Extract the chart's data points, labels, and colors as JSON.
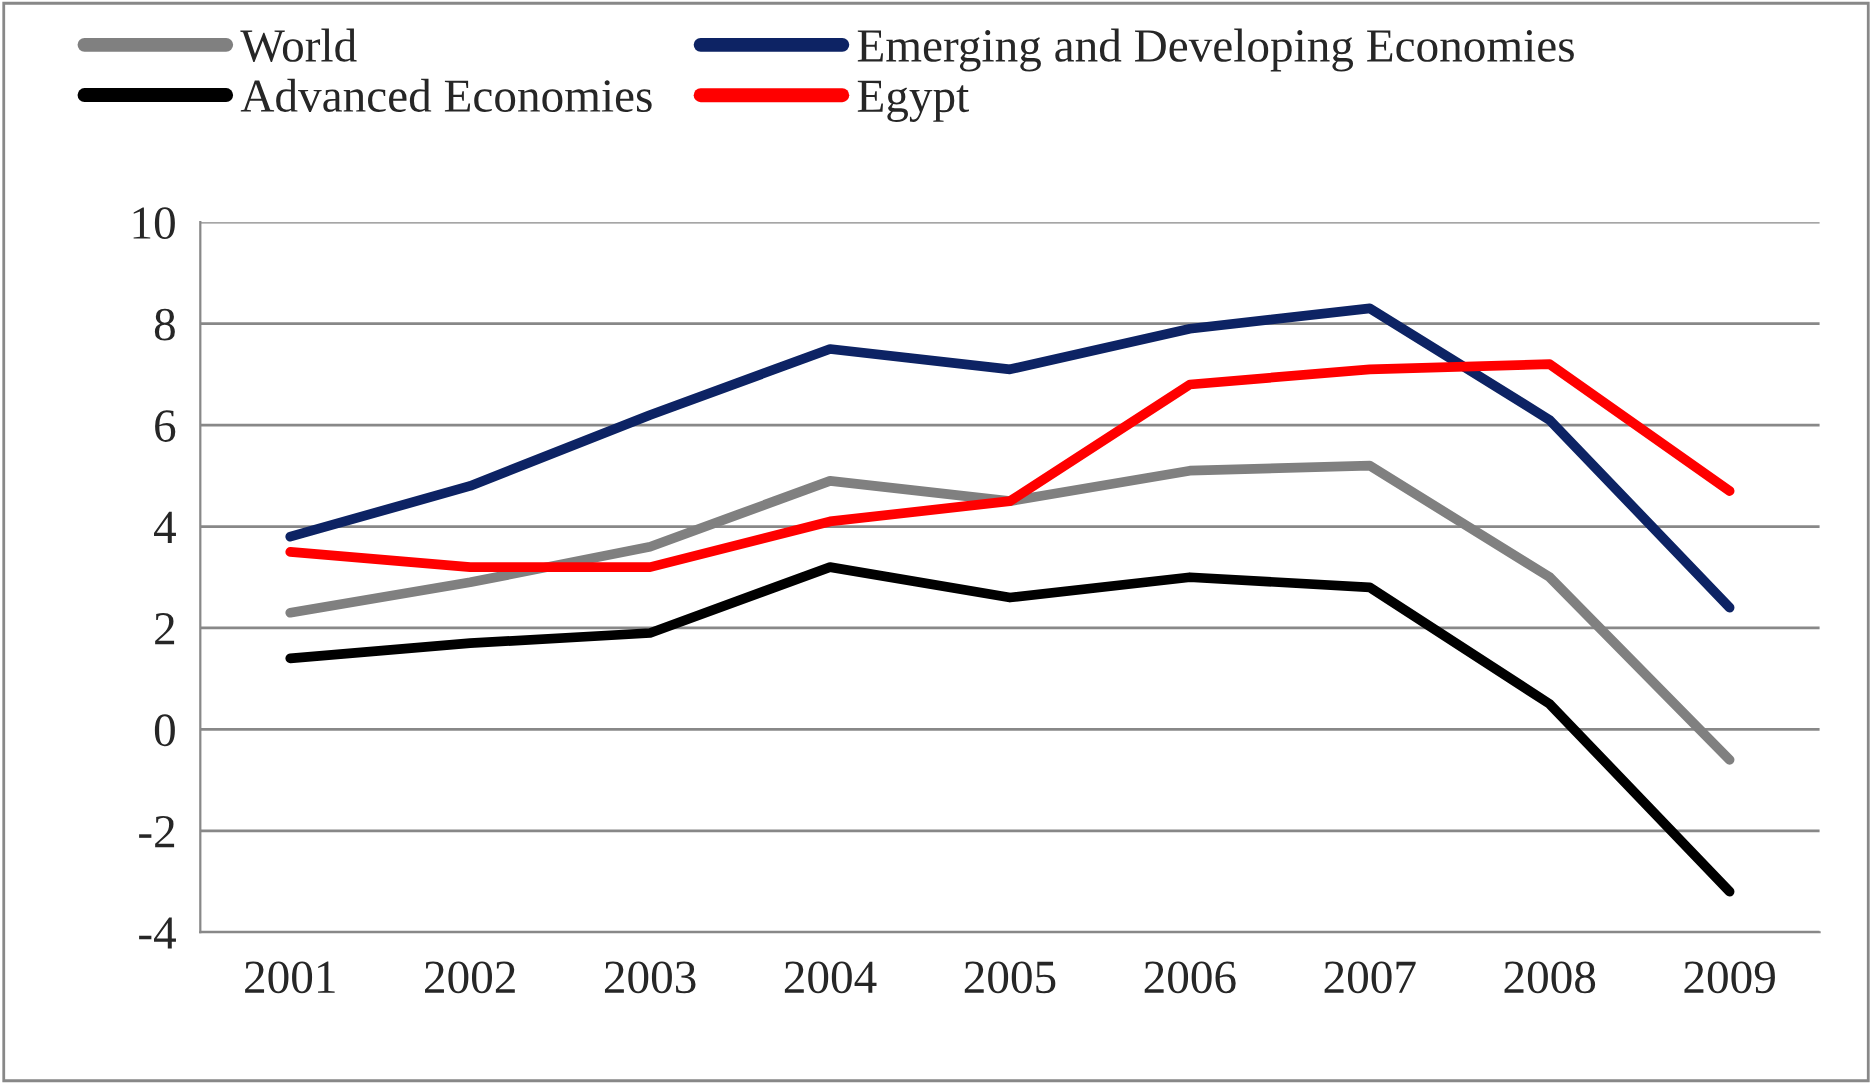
{
  "chart_data": {
    "type": "line",
    "categories": [
      "2001",
      "2002",
      "2003",
      "2004",
      "2005",
      "2006",
      "2007",
      "2008",
      "2009"
    ],
    "series": [
      {
        "name": "World",
        "color": "#808080",
        "values": [
          2.3,
          2.9,
          3.6,
          4.9,
          4.5,
          5.1,
          5.2,
          3.0,
          -0.6
        ]
      },
      {
        "name": "Advanced Economies",
        "color": "#000000",
        "values": [
          1.4,
          1.7,
          1.9,
          3.2,
          2.6,
          3.0,
          2.8,
          0.5,
          -3.2
        ]
      },
      {
        "name": "Emerging and Developing Economies",
        "color": "#0d2364",
        "values": [
          3.8,
          4.8,
          6.2,
          7.5,
          7.1,
          7.9,
          8.3,
          6.1,
          2.4
        ]
      },
      {
        "name": "Egypt",
        "color": "#ff0000",
        "values": [
          3.5,
          3.2,
          3.2,
          4.1,
          4.5,
          6.8,
          7.1,
          7.2,
          4.7
        ]
      }
    ],
    "ylim": [
      -4,
      10
    ],
    "yticks": [
      -4,
      -2,
      0,
      2,
      4,
      6,
      8,
      10
    ],
    "grid": "y",
    "legend": "top",
    "marker": "none",
    "line_style": "solid"
  }
}
